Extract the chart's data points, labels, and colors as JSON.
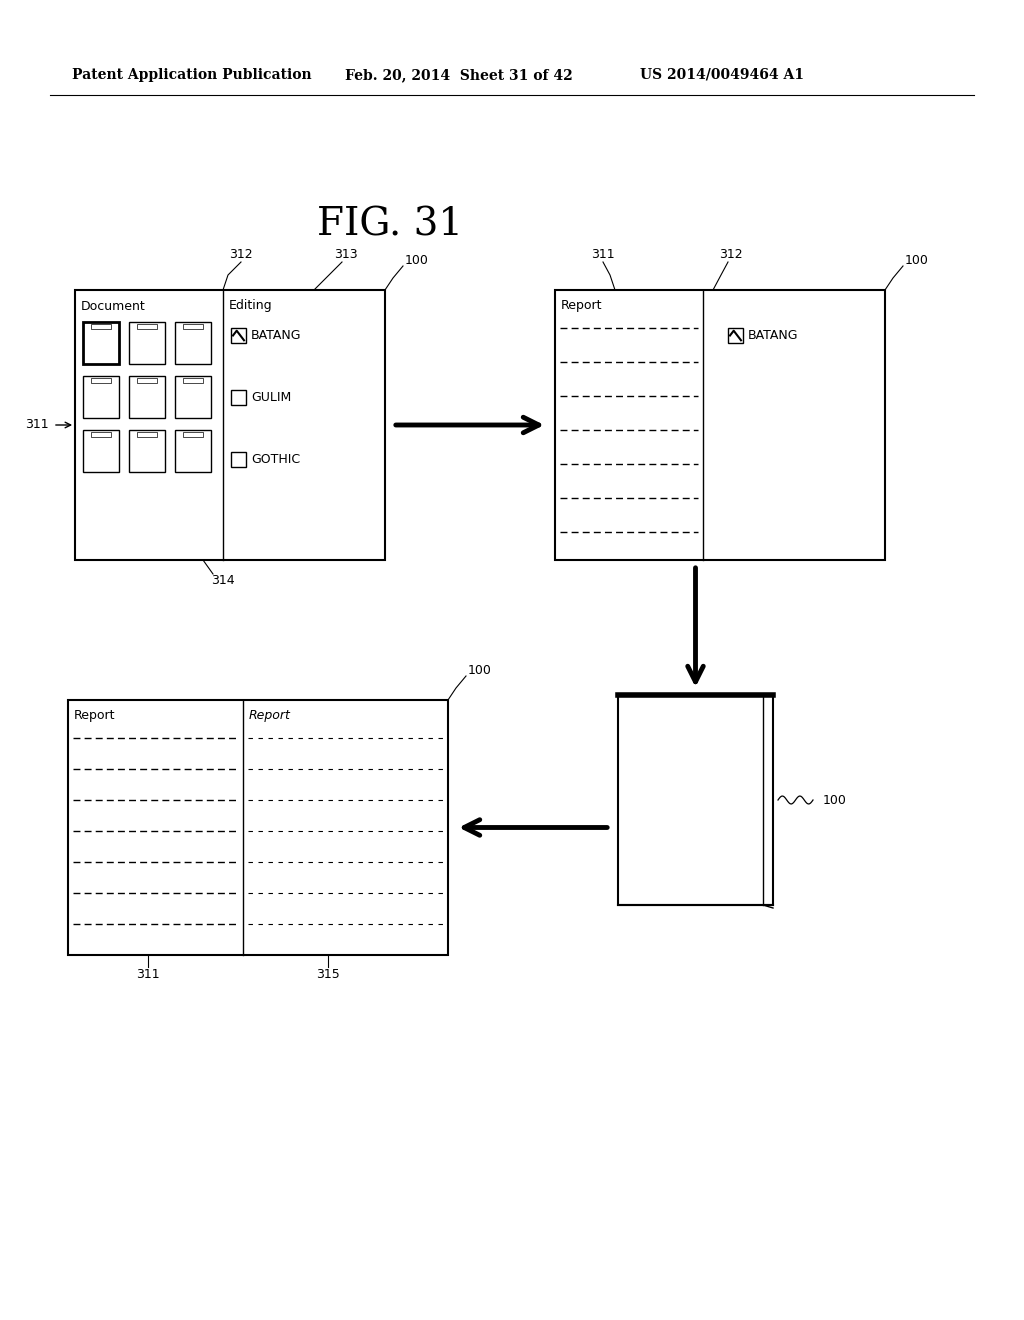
{
  "bg_color": "#ffffff",
  "title": "FIG. 31",
  "header_left": "Patent Application Publication",
  "header_mid": "Feb. 20, 2014  Sheet 31 of 42",
  "header_right": "US 2014/0049464 A1",
  "fig_title_fontsize": 28,
  "header_fontsize": 11,
  "label_fontsize": 9,
  "content_fontsize": 9
}
